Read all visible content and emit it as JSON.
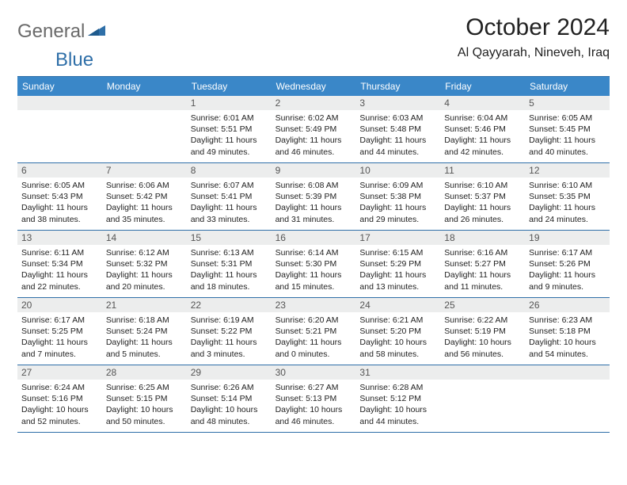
{
  "logo": {
    "text1": "General",
    "text2": "Blue"
  },
  "header": {
    "title": "October 2024",
    "location": "Al Qayyarah, Nineveh, Iraq"
  },
  "colors": {
    "accent": "#2f6fa8",
    "header_bar": "#3a87c8",
    "daynum_bg": "#eceded",
    "text": "#222222",
    "logo_gray": "#6a6a6a"
  },
  "dows": [
    "Sunday",
    "Monday",
    "Tuesday",
    "Wednesday",
    "Thursday",
    "Friday",
    "Saturday"
  ],
  "labels": {
    "sunrise": "Sunrise:",
    "sunset": "Sunset:",
    "daylight": "Daylight:"
  },
  "weeks": [
    [
      null,
      null,
      {
        "d": "1",
        "sr": "6:01 AM",
        "ss": "5:51 PM",
        "dl": "11 hours and 49 minutes."
      },
      {
        "d": "2",
        "sr": "6:02 AM",
        "ss": "5:49 PM",
        "dl": "11 hours and 46 minutes."
      },
      {
        "d": "3",
        "sr": "6:03 AM",
        "ss": "5:48 PM",
        "dl": "11 hours and 44 minutes."
      },
      {
        "d": "4",
        "sr": "6:04 AM",
        "ss": "5:46 PM",
        "dl": "11 hours and 42 minutes."
      },
      {
        "d": "5",
        "sr": "6:05 AM",
        "ss": "5:45 PM",
        "dl": "11 hours and 40 minutes."
      }
    ],
    [
      {
        "d": "6",
        "sr": "6:05 AM",
        "ss": "5:43 PM",
        "dl": "11 hours and 38 minutes."
      },
      {
        "d": "7",
        "sr": "6:06 AM",
        "ss": "5:42 PM",
        "dl": "11 hours and 35 minutes."
      },
      {
        "d": "8",
        "sr": "6:07 AM",
        "ss": "5:41 PM",
        "dl": "11 hours and 33 minutes."
      },
      {
        "d": "9",
        "sr": "6:08 AM",
        "ss": "5:39 PM",
        "dl": "11 hours and 31 minutes."
      },
      {
        "d": "10",
        "sr": "6:09 AM",
        "ss": "5:38 PM",
        "dl": "11 hours and 29 minutes."
      },
      {
        "d": "11",
        "sr": "6:10 AM",
        "ss": "5:37 PM",
        "dl": "11 hours and 26 minutes."
      },
      {
        "d": "12",
        "sr": "6:10 AM",
        "ss": "5:35 PM",
        "dl": "11 hours and 24 minutes."
      }
    ],
    [
      {
        "d": "13",
        "sr": "6:11 AM",
        "ss": "5:34 PM",
        "dl": "11 hours and 22 minutes."
      },
      {
        "d": "14",
        "sr": "6:12 AM",
        "ss": "5:32 PM",
        "dl": "11 hours and 20 minutes."
      },
      {
        "d": "15",
        "sr": "6:13 AM",
        "ss": "5:31 PM",
        "dl": "11 hours and 18 minutes."
      },
      {
        "d": "16",
        "sr": "6:14 AM",
        "ss": "5:30 PM",
        "dl": "11 hours and 15 minutes."
      },
      {
        "d": "17",
        "sr": "6:15 AM",
        "ss": "5:29 PM",
        "dl": "11 hours and 13 minutes."
      },
      {
        "d": "18",
        "sr": "6:16 AM",
        "ss": "5:27 PM",
        "dl": "11 hours and 11 minutes."
      },
      {
        "d": "19",
        "sr": "6:17 AM",
        "ss": "5:26 PM",
        "dl": "11 hours and 9 minutes."
      }
    ],
    [
      {
        "d": "20",
        "sr": "6:17 AM",
        "ss": "5:25 PM",
        "dl": "11 hours and 7 minutes."
      },
      {
        "d": "21",
        "sr": "6:18 AM",
        "ss": "5:24 PM",
        "dl": "11 hours and 5 minutes."
      },
      {
        "d": "22",
        "sr": "6:19 AM",
        "ss": "5:22 PM",
        "dl": "11 hours and 3 minutes."
      },
      {
        "d": "23",
        "sr": "6:20 AM",
        "ss": "5:21 PM",
        "dl": "11 hours and 0 minutes."
      },
      {
        "d": "24",
        "sr": "6:21 AM",
        "ss": "5:20 PM",
        "dl": "10 hours and 58 minutes."
      },
      {
        "d": "25",
        "sr": "6:22 AM",
        "ss": "5:19 PM",
        "dl": "10 hours and 56 minutes."
      },
      {
        "d": "26",
        "sr": "6:23 AM",
        "ss": "5:18 PM",
        "dl": "10 hours and 54 minutes."
      }
    ],
    [
      {
        "d": "27",
        "sr": "6:24 AM",
        "ss": "5:16 PM",
        "dl": "10 hours and 52 minutes."
      },
      {
        "d": "28",
        "sr": "6:25 AM",
        "ss": "5:15 PM",
        "dl": "10 hours and 50 minutes."
      },
      {
        "d": "29",
        "sr": "6:26 AM",
        "ss": "5:14 PM",
        "dl": "10 hours and 48 minutes."
      },
      {
        "d": "30",
        "sr": "6:27 AM",
        "ss": "5:13 PM",
        "dl": "10 hours and 46 minutes."
      },
      {
        "d": "31",
        "sr": "6:28 AM",
        "ss": "5:12 PM",
        "dl": "10 hours and 44 minutes."
      },
      null,
      null
    ]
  ]
}
